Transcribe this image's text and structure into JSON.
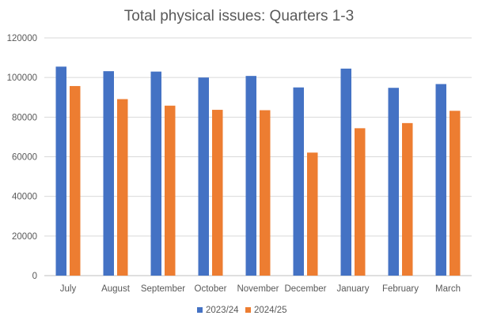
{
  "chart_data": {
    "type": "bar",
    "title": "Total physical issues: Quarters 1-3",
    "xlabel": "",
    "ylabel": "",
    "categories": [
      "July",
      "August",
      "September",
      "October",
      "November",
      "December",
      "January",
      "February",
      "March"
    ],
    "series": [
      {
        "name": "2023/24",
        "color": "#4472c4",
        "values": [
          105500,
          103200,
          103000,
          100000,
          100800,
          95000,
          104500,
          94800,
          96700
        ]
      },
      {
        "name": "2024/25",
        "color": "#ed7d31",
        "values": [
          95700,
          89100,
          85800,
          83700,
          83500,
          62100,
          74400,
          77000,
          83200
        ]
      }
    ],
    "yticks": [
      "0",
      "20000",
      "40000",
      "60000",
      "80000",
      "100000",
      "120000"
    ],
    "ylim": [
      0,
      120000
    ],
    "grid": true,
    "legend_position": "bottom"
  }
}
